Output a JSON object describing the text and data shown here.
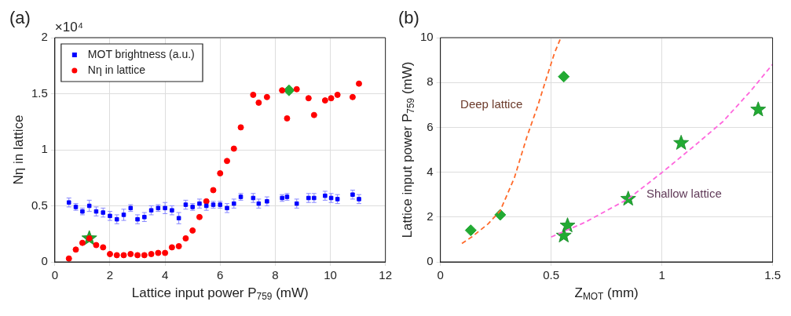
{
  "chart_data": [
    {
      "type": "scatter",
      "title": "(a)",
      "xlabel": "Lattice input power P$_{759}$ (mW)",
      "ylabel": "Nη in lattice",
      "annotations": [
        "×10⁴"
      ],
      "xlim": [
        0,
        12
      ],
      "xticks": [
        0,
        2,
        4,
        6,
        8,
        10,
        12
      ],
      "ylim": [
        0,
        2
      ],
      "yticks": [
        0,
        0.5,
        {
          "value": 1,
          "label": "1"
        },
        1.5,
        {
          "value": 2,
          "label": "2"
        }
      ],
      "grid": true,
      "legend": "top left",
      "series": [
        {
          "name": "MOT brightness (a.u.)",
          "color": "#0000ff",
          "marker": "square",
          "x": [
            0.51,
            0.76,
            1.0,
            1.25,
            1.5,
            1.75,
            2.0,
            2.25,
            2.5,
            2.75,
            3.0,
            3.25,
            3.5,
            3.75,
            4.0,
            4.25,
            4.5,
            4.75,
            5.0,
            5.25,
            5.5,
            5.75,
            6.0,
            6.25,
            6.5,
            6.75,
            7.2,
            7.4,
            7.7,
            8.25,
            8.43,
            8.78,
            9.21,
            9.41,
            9.81,
            10.03,
            10.26,
            10.81,
            11.04
          ],
          "values": [
            0.53,
            0.49,
            0.45,
            0.5,
            0.45,
            0.44,
            0.41,
            0.38,
            0.42,
            0.48,
            0.38,
            0.4,
            0.46,
            0.48,
            0.48,
            0.46,
            0.39,
            0.51,
            0.49,
            0.52,
            0.5,
            0.51,
            0.51,
            0.48,
            0.52,
            0.58,
            0.57,
            0.52,
            0.54,
            0.57,
            0.58,
            0.52,
            0.57,
            0.57,
            0.59,
            0.57,
            0.56,
            0.6,
            0.56
          ],
          "errors": [
            0.04,
            0.03,
            0.03,
            0.05,
            0.04,
            0.04,
            0.04,
            0.04,
            0.05,
            0.03,
            0.04,
            0.04,
            0.04,
            0.03,
            0.05,
            0.04,
            0.05,
            0.04,
            0.03,
            0.04,
            0.04,
            0.03,
            0.03,
            0.04,
            0.04,
            0.03,
            0.04,
            0.04,
            0.04,
            0.03,
            0.03,
            0.04,
            0.04,
            0.04,
            0.04,
            0.04,
            0.04,
            0.04,
            0.04
          ]
        },
        {
          "name": "Nη in lattice",
          "color": "#ff0000",
          "marker": "circle",
          "x": [
            0.51,
            0.76,
            1.0,
            1.25,
            1.5,
            1.75,
            2.0,
            2.25,
            2.5,
            2.75,
            3.0,
            3.25,
            3.5,
            3.75,
            4.0,
            4.25,
            4.5,
            4.75,
            5.0,
            5.25,
            5.5,
            5.75,
            6.0,
            6.25,
            6.5,
            6.75,
            7.2,
            7.4,
            7.7,
            8.25,
            8.43,
            8.78,
            9.21,
            9.41,
            9.81,
            10.03,
            10.26,
            10.81,
            11.04
          ],
          "values": [
            0.03,
            0.11,
            0.17,
            0.21,
            0.15,
            0.13,
            0.07,
            0.06,
            0.06,
            0.07,
            0.06,
            0.06,
            0.07,
            0.08,
            0.08,
            0.13,
            0.14,
            0.21,
            0.28,
            0.4,
            0.54,
            0.64,
            0.79,
            0.9,
            1.01,
            1.2,
            1.49,
            1.42,
            1.47,
            1.53,
            1.28,
            1.54,
            1.46,
            1.31,
            1.44,
            1.46,
            1.49,
            1.47,
            1.59
          ]
        },
        {
          "color": "#22aa33",
          "marker": "star",
          "x": [
            1.25
          ],
          "values": [
            0.21
          ]
        },
        {
          "color": "#22aa33",
          "marker": "diamond",
          "x": [
            8.5
          ],
          "values": [
            1.53
          ]
        }
      ]
    },
    {
      "type": "scatter",
      "title": "(b)",
      "xlabel": "Z$_{MOT}$ (mm)",
      "ylabel": "Lattice input power P$_{759}$ (mW)",
      "annotations": [
        "Deep lattice",
        "Shallow lattice"
      ],
      "xlim": [
        0,
        1.5
      ],
      "xticks": [
        0,
        0.5,
        {
          "value": 1,
          "label": "1"
        },
        1.5
      ],
      "ylim": [
        0,
        10
      ],
      "yticks": [
        0,
        2,
        4,
        6,
        8,
        10
      ],
      "grid": true,
      "series": [
        {
          "type": "line",
          "color": "#ff6a2a",
          "marker": "none",
          "line_style": "dashed",
          "x": [
            0.097,
            0.141,
            0.216,
            0.27,
            0.334,
            0.39,
            0.44,
            0.477,
            0.515,
            0.544
          ],
          "values": [
            0.82,
            1.11,
            1.7,
            2.28,
            3.75,
            5.56,
            6.97,
            8.14,
            9.31,
            10
          ]
        },
        {
          "type": "line",
          "color": "#ff66dd",
          "marker": "none",
          "line_style": "dashed",
          "x": [
            0.5,
            0.652,
            0.848,
            1.0,
            1.151,
            1.276,
            1.4,
            1.5
          ],
          "values": [
            1.11,
            1.76,
            2.81,
            3.98,
            5.21,
            6.26,
            7.61,
            8.81
          ]
        },
        {
          "color": "#22aa33",
          "marker": "diamond",
          "x": [
            0.137,
            0.27,
            0.557
          ],
          "values": [
            1.41,
            2.1,
            8.26
          ]
        },
        {
          "color": "#22aa33",
          "marker": "star",
          "x": [
            0.557,
            0.574,
            0.848,
            1.087,
            1.435
          ],
          "values": [
            1.17,
            1.62,
            2.81,
            5.3,
            6.79
          ]
        }
      ]
    }
  ]
}
